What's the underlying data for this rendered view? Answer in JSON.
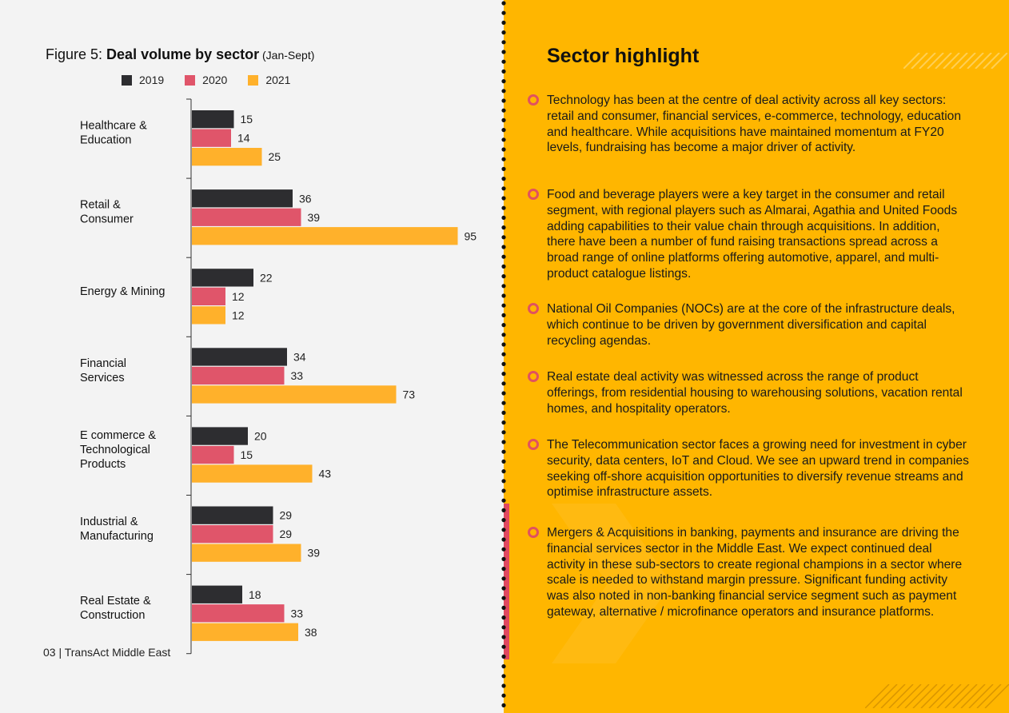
{
  "figure": {
    "prefix": "Figure 5: ",
    "title": "Deal volume by sector",
    "subtitle": " (Jan-Sept)"
  },
  "legend": {
    "items": [
      {
        "label": "2019",
        "color": "#2d2d30"
      },
      {
        "label": "2020",
        "color": "#e0556a"
      },
      {
        "label": "2021",
        "color": "#ffb12b"
      }
    ]
  },
  "chart_data": {
    "type": "bar",
    "orientation": "horizontal",
    "title": "Deal volume by sector (Jan-Sept)",
    "xlabel": "",
    "ylabel": "",
    "xlim": [
      0,
      100
    ],
    "categories": [
      [
        "Healthcare &",
        "Education"
      ],
      [
        "Retail &",
        "Consumer"
      ],
      [
        "Energy & Mining"
      ],
      [
        "Financial",
        "Services"
      ],
      [
        "E commerce &",
        "Technological",
        "Products"
      ],
      [
        "Industrial &",
        "Manufacturing"
      ],
      [
        "Real Estate &",
        "Construction"
      ]
    ],
    "series": [
      {
        "name": "2019",
        "color": "#2d2d30",
        "values": [
          15,
          36,
          22,
          34,
          20,
          29,
          18
        ]
      },
      {
        "name": "2020",
        "color": "#e0556a",
        "values": [
          14,
          39,
          12,
          33,
          15,
          29,
          33
        ]
      },
      {
        "name": "2021",
        "color": "#ffb12b",
        "values": [
          25,
          95,
          12,
          73,
          43,
          39,
          38
        ]
      }
    ]
  },
  "footer": "03 | TransAct Middle East",
  "highlight": {
    "title": "Sector highlight",
    "bullets": [
      "Technology has been at the centre of deal activity across all key sectors: retail and consumer, financial services, e-commerce, technology, education and healthcare. While acquisitions have maintained momentum at FY20 levels, fundraising has become a major driver of activity.",
      "Food and beverage players were a key target in the consumer and retail segment, with regional players such as Almarai, Agathia and United Foods adding capabilities to their value chain through acquisitions. In addition, there have been a number of fund raising transactions spread across a broad range of online platforms offering automotive, apparel, and multi-product catalogue listings.",
      "National Oil Companies (NOCs) are at the core of the infrastructure deals, which continue to be driven by government diversification and capital recycling agendas.",
      "Real estate deal activity was witnessed across the range of product offerings, from residential housing to warehousing solutions, vacation rental homes, and hospitality operators.",
      "The Telecommunication sector faces a growing need for investment in cyber security, data centers, IoT and Cloud. We see an upward trend in companies seeking off-shore acquisition opportunities to diversify revenue streams and optimise infrastructure assets.",
      "Mergers & Acquisitions in banking, payments and insurance are driving the financial services sector in the Middle East. We expect continued deal activity in these sub-sectors to create regional champions in a sector where scale is needed to withstand margin pressure. Significant funding activity was also noted in non-banking financial service segment such as payment gateway, alternative / microfinance operators and insurance platforms."
    ]
  }
}
